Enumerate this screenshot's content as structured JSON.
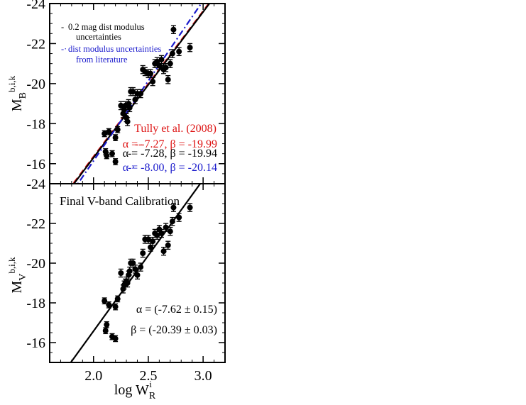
{
  "chart_data": [
    {
      "type": "scatter",
      "name": "B-band",
      "xlim": [
        1.6,
        3.2
      ],
      "ylim": [
        -15,
        -24
      ],
      "yticks": [
        -16,
        -18,
        -20,
        -22,
        -24
      ],
      "ylabel": {
        "main": "M",
        "sub": "B",
        "sup": "b,i,k"
      },
      "legend": [
        {
          "key": "-",
          "text": "0.2 mag dist modulus",
          "text2": "uncertainties",
          "color": "#000000"
        },
        {
          "key": "-·",
          "text": "dist modulus uncertainties",
          "text2": "from literature",
          "color": "#1a1acc"
        }
      ],
      "annotations": {
        "tully": "Tully et al. (2008)",
        "fits": [
          {
            "key": "--",
            "text": "α = -7.27, β = -19.99",
            "color": "#dd1111"
          },
          {
            "key": "-",
            "text": "α = -7.28, β = -19.94",
            "color": "#000000"
          },
          {
            "key": "-·",
            "text": "α = -8.00, β = -20.14",
            "color": "#1a1acc"
          }
        ]
      },
      "lines": [
        {
          "style": "dashed",
          "color": "#dd1111",
          "alpha": -7.27,
          "beta": -19.99
        },
        {
          "style": "solid",
          "color": "#000000",
          "alpha": -7.28,
          "beta": -19.94
        },
        {
          "style": "dashdot",
          "color": "#1a1acc",
          "alpha": -8.0,
          "beta": -20.14
        }
      ],
      "points": [
        [
          2.1,
          -17.5,
          0.15
        ],
        [
          2.11,
          -16.6,
          0.15
        ],
        [
          2.12,
          -16.4,
          0.15
        ],
        [
          2.14,
          -17.6,
          0.15
        ],
        [
          2.17,
          -16.5,
          0.15
        ],
        [
          2.2,
          -16.1,
          0.15
        ],
        [
          2.2,
          -17.3,
          0.15
        ],
        [
          2.22,
          -17.7,
          0.15
        ],
        [
          2.25,
          -18.9,
          0.2
        ],
        [
          2.27,
          -18.5,
          0.2
        ],
        [
          2.28,
          -18.7,
          0.2
        ],
        [
          2.29,
          -18.9,
          0.2
        ],
        [
          2.3,
          -18.3,
          0.2
        ],
        [
          2.31,
          -18.1,
          0.2
        ],
        [
          2.32,
          -19.0,
          0.2
        ],
        [
          2.33,
          -18.8,
          0.2
        ],
        [
          2.34,
          -19.6,
          0.2
        ],
        [
          2.36,
          -19.6,
          0.2
        ],
        [
          2.38,
          -19.2,
          0.2
        ],
        [
          2.4,
          -19.5,
          0.2
        ],
        [
          2.43,
          -19.5,
          0.2
        ],
        [
          2.45,
          -20.7,
          0.2
        ],
        [
          2.47,
          -20.6,
          0.2
        ],
        [
          2.5,
          -20.5,
          0.2
        ],
        [
          2.52,
          -20.5,
          0.2
        ],
        [
          2.54,
          -20.1,
          0.2
        ],
        [
          2.56,
          -21.0,
          0.2
        ],
        [
          2.58,
          -21.1,
          0.2
        ],
        [
          2.6,
          -20.9,
          0.2
        ],
        [
          2.62,
          -21.2,
          0.2
        ],
        [
          2.64,
          -20.7,
          0.2
        ],
        [
          2.66,
          -20.8,
          0.2
        ],
        [
          2.68,
          -20.2,
          0.2
        ],
        [
          2.7,
          -21.0,
          0.2
        ],
        [
          2.72,
          -21.5,
          0.2
        ],
        [
          2.73,
          -22.7,
          0.2
        ],
        [
          2.78,
          -21.6,
          0.2
        ],
        [
          2.88,
          -21.8,
          0.2
        ]
      ]
    },
    {
      "type": "scatter",
      "name": "V-band",
      "title": "Final V-band Calibration",
      "xlim": [
        1.6,
        3.2
      ],
      "ylim": [
        -15,
        -24
      ],
      "xticks": [
        2.0,
        2.5,
        3.0
      ],
      "xticklabels": [
        "2.0",
        "2.5",
        "3.0"
      ],
      "yticks": [
        -16,
        -18,
        -20,
        -22,
        -24
      ],
      "xlabel": {
        "main": "log W",
        "sub": "R",
        "sup": "i"
      },
      "ylabel": {
        "main": "M",
        "sub": "V",
        "sup": "b,i,k"
      },
      "fit_alpha": "α = (-7.62 ± 0.15)",
      "fit_beta": "β = (-20.39 ± 0.03)",
      "lines": [
        {
          "style": "solid",
          "color": "#000000",
          "alpha": -7.62,
          "beta": -20.39
        }
      ],
      "points": [
        [
          2.1,
          -18.1,
          0.15
        ],
        [
          2.11,
          -16.6,
          0.15
        ],
        [
          2.12,
          -16.9,
          0.15
        ],
        [
          2.14,
          -17.9,
          0.15
        ],
        [
          2.17,
          -16.3,
          0.15
        ],
        [
          2.2,
          -16.2,
          0.15
        ],
        [
          2.2,
          -17.8,
          0.15
        ],
        [
          2.22,
          -18.2,
          0.15
        ],
        [
          2.25,
          -19.5,
          0.2
        ],
        [
          2.27,
          -18.7,
          0.2
        ],
        [
          2.28,
          -18.9,
          0.2
        ],
        [
          2.29,
          -19.0,
          0.2
        ],
        [
          2.3,
          -19.1,
          0.2
        ],
        [
          2.31,
          -19.0,
          0.2
        ],
        [
          2.32,
          -19.4,
          0.2
        ],
        [
          2.33,
          -19.6,
          0.2
        ],
        [
          2.34,
          -20.0,
          0.2
        ],
        [
          2.36,
          -20.0,
          0.2
        ],
        [
          2.38,
          -19.7,
          0.2
        ],
        [
          2.4,
          -19.4,
          0.2
        ],
        [
          2.43,
          -19.8,
          0.2
        ],
        [
          2.45,
          -20.5,
          0.2
        ],
        [
          2.47,
          -21.2,
          0.2
        ],
        [
          2.5,
          -21.2,
          0.2
        ],
        [
          2.52,
          -20.8,
          0.2
        ],
        [
          2.54,
          -21.1,
          0.2
        ],
        [
          2.56,
          -21.5,
          0.2
        ],
        [
          2.58,
          -21.4,
          0.2
        ],
        [
          2.6,
          -21.7,
          0.2
        ],
        [
          2.62,
          -21.5,
          0.2
        ],
        [
          2.64,
          -20.6,
          0.2
        ],
        [
          2.66,
          -21.8,
          0.2
        ],
        [
          2.68,
          -20.9,
          0.2
        ],
        [
          2.7,
          -21.6,
          0.2
        ],
        [
          2.72,
          -22.1,
          0.2
        ],
        [
          2.73,
          -22.8,
          0.2
        ],
        [
          2.78,
          -22.3,
          0.2
        ],
        [
          2.88,
          -22.8,
          0.2
        ]
      ]
    }
  ]
}
